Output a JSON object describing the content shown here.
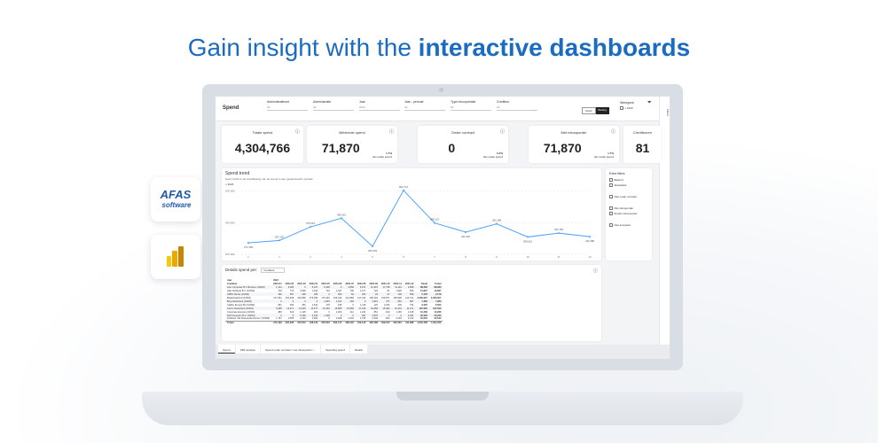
{
  "headline": {
    "normal": "Gain insight with the ",
    "bold": "interactive dashboards"
  },
  "logos": {
    "afas": "AFAS software",
    "powerbi": "Power BI"
  },
  "dashboard": {
    "title": "Spend",
    "filters": [
      {
        "label": "Administratieset",
        "value": "All"
      },
      {
        "label": "Administratie",
        "value": "All"
      },
      {
        "label": "Jaar",
        "value": "2024"
      },
      {
        "label": "Jaar - periode",
        "value": "All"
      },
      {
        "label": "Type inkooprelatie",
        "value": "All"
      },
      {
        "label": "Crediteur",
        "value": "All"
      }
    ],
    "toggle": {
      "a": "Actief",
      "b": "Beding"
    },
    "weergave": {
      "label": "Weergave",
      "option": "x 1000"
    },
    "filters_pane": "Filters",
    "kpis": [
      {
        "title": "Totale spend",
        "value": "4,304,766"
      },
      {
        "title": "Beheerde spend",
        "value": "71,870",
        "pct": "1.7%",
        "sub": "Van totale spend"
      },
      {
        "title": "Onder contract",
        "value": "0",
        "pct": "0.0%",
        "sub": "Van totale spend"
      },
      {
        "title": "Met inkooporder",
        "value": "71,870",
        "pct": "1.7%",
        "sub": "Van totale spend"
      },
      {
        "title": "Crediteuren",
        "value": "81"
      }
    ],
    "extra_filters": {
      "title": "Extra filters",
      "items": [
        "Bekend",
        "Standaard",
        "Niet onder contract",
        "Met inkooporder",
        "Zonder inkooporder",
        "Niet accepted"
      ]
    },
    "details": {
      "title": "Details spend per:",
      "select": "Crediteur",
      "year_label": "Jaar",
      "row_label": "Crediteur",
      "year": "2024",
      "columns": [
        "2024-01",
        "2024-02",
        "2024-03",
        "2024-04",
        "2024-05",
        "2024-06",
        "2024-07",
        "2024-08",
        "2024-09",
        "2024-10",
        "2024-11",
        "2024-12",
        "Totaal",
        "Totaal"
      ],
      "rows": [
        [
          "Acer Computer B.V. Benelux (10034)",
          "1,314",
          "3,266",
          "0",
          "5,107",
          "9,428",
          "0",
          "3,859",
          "6,671",
          "12,615",
          "17,738",
          "11,116",
          "3,838",
          "88,663",
          "88,663"
        ],
        [
          "Afas Software B.V. (10002)",
          "749",
          "776",
          "3,596",
          "1,252",
          "732",
          "1,437",
          "706",
          "1,277",
          "726",
          "81",
          "1,028",
          "569",
          "13,827",
          "13,827"
        ],
        [
          "APBO Dienst (10040)",
          "196",
          "557",
          "-196",
          "185",
          "0",
          "183",
          "84",
          "183",
          "93",
          "-47",
          "193",
          "569",
          "2,178",
          "2,178"
        ],
        [
          "Belastingdienst (10001)",
          "127,961",
          "164,495",
          "229,986",
          "279,036",
          "170,449",
          "426,432",
          "212,883",
          "147,442",
          "180,333",
          "169,871",
          "190,938",
          "144,721",
          "2,266,627",
          "2,266,627"
        ],
        [
          "Berg Nederland (10018)",
          "0",
          "0",
          "0",
          "0",
          "1,545",
          "1,191",
          "493",
          "0",
          "1,819",
          "477",
          "861",
          "897",
          "7,283",
          "7,283"
        ],
        [
          "Caliber Europe BV (10093)",
          "951",
          "330",
          "351",
          "1,542",
          "178",
          "635",
          "0",
          "1,118",
          "120",
          "2,234",
          "349",
          "724",
          "9,520",
          "9,520"
        ],
        [
          "Canon Nederland (10014)",
          "5,098",
          "13,271",
          "14,323",
          "13,277",
          "15,149",
          "16,868",
          "16,966",
          "17,216",
          "24,058",
          "15,460",
          "10,401",
          "11,271",
          "197,520",
          "197,520"
        ],
        [
          "Corporate Express (10023)",
          "380",
          "619",
          "1,125",
          "406",
          "0",
          "2,203",
          "412",
          "1,224",
          "851",
          "-190",
          "1,165",
          "1,168",
          "10,266",
          "10,266"
        ],
        [
          "Dell Computer B.V. (10016)",
          "0",
          "0",
          "5,166",
          "4,444",
          "1,438",
          "0",
          "0",
          "487",
          "4,975",
          "0",
          "0",
          "2,451",
          "20,205",
          "20,205"
        ],
        [
          "Drukkerij \"De Drasuende Persen\" (10026)",
          "1,767",
          "1,565",
          "2,216",
          "2,062",
          "0",
          "2,928",
          "2,291",
          "1,736",
          "2,239",
          "-362",
          "2,218",
          "2,132",
          "22,640",
          "22,640"
        ]
      ],
      "total": [
        "Totaal",
        "272,199",
        "287,230",
        "372,615",
        "428,142",
        "250,503",
        "603,714",
        "398,123",
        "340,140",
        "392,188",
        "309,615",
        "333,784",
        "311,088",
        "4,304,766",
        "4,304,766"
      ]
    },
    "tabs": [
      "Spend",
      "ABC analyse",
      "Spend onder contract / met inkooporder /...",
      "Spending spend",
      "Details"
    ]
  },
  "chart_data": {
    "type": "line",
    "title": "Spend trend",
    "subtitle": "Geef inzicht in de ontwikkeling van de spend in een geselecteerde periode",
    "legend": [
      "2024"
    ],
    "x": [
      1,
      2,
      3,
      4,
      5,
      6,
      7,
      8,
      9,
      10,
      11,
      12
    ],
    "series": [
      {
        "name": "2024",
        "values": [
          272199,
          287230,
          372615,
          428142,
          250503,
          603714,
          398123,
          340140,
          392188,
          309615,
          333784,
          311088
        ],
        "labels": [
          "272,199",
          "287,230",
          "372,615",
          "428,142",
          "250,503",
          "603,714",
          "398,123",
          "340,140",
          "392,188",
          "309,615",
          "333,784",
          "311,088"
        ]
      }
    ],
    "yticks": [
      "200,000",
      "400,000",
      "600,000"
    ],
    "ylim": [
      200000,
      620000
    ],
    "color": "#4da3ff",
    "grid": true
  }
}
